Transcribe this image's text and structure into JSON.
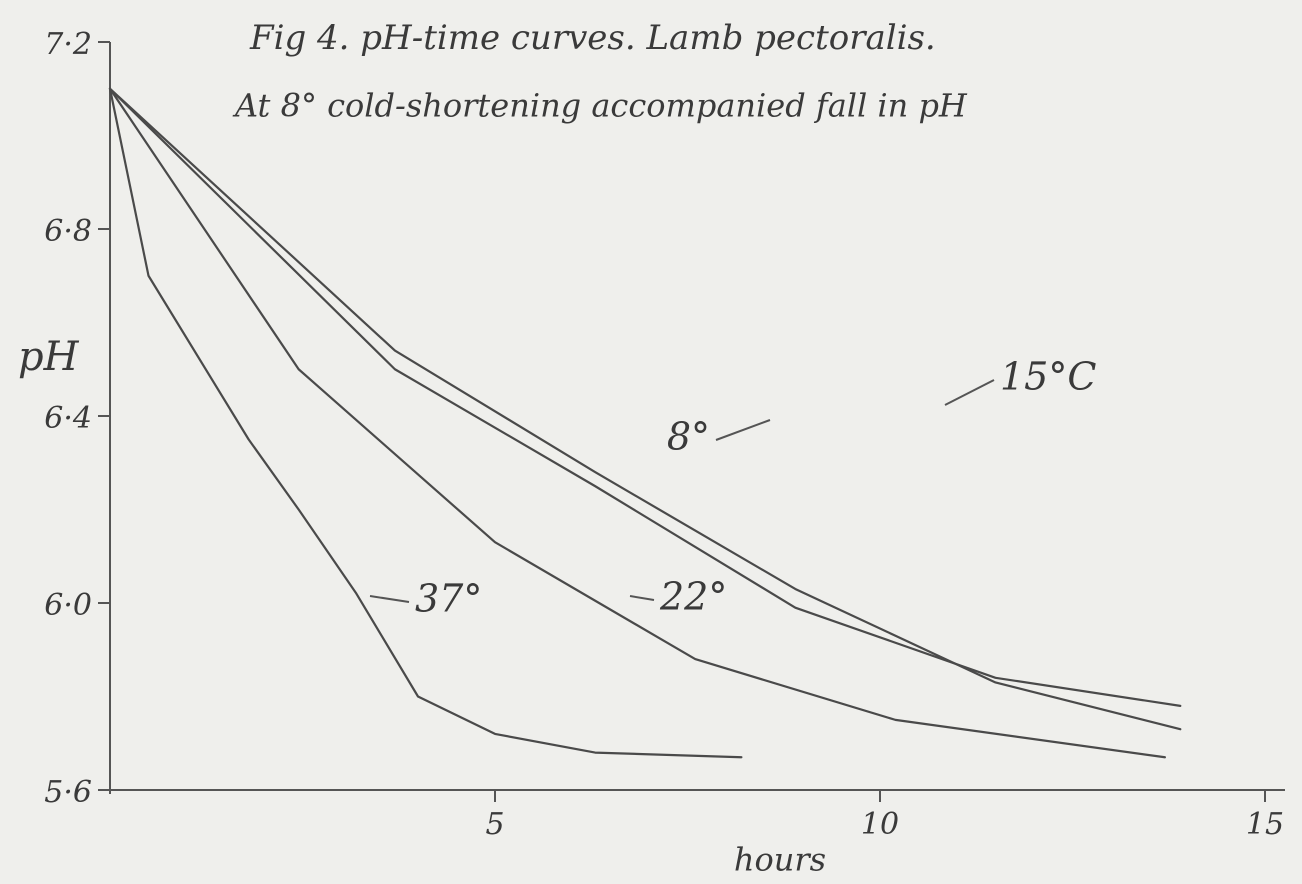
{
  "chart_data": {
    "type": "line",
    "title": "Fig 4. pH-time curves. Lamb pectoralis.",
    "subtitle": "At 8° cold-shortening accompanied fall in pH",
    "x_label": "hours",
    "y_label": "pH",
    "xlim": [
      0,
      15
    ],
    "xticks": [
      5,
      10,
      15
    ],
    "ylim": [
      5.6,
      7.2
    ],
    "yticks": [
      {
        "value": 5.6,
        "label": "5·6"
      },
      {
        "value": 6.0,
        "label": "6·0"
      },
      {
        "value": 6.4,
        "label": "6·4"
      },
      {
        "value": 6.8,
        "label": "6·8"
      },
      {
        "value": 7.2,
        "label": "7·2"
      }
    ],
    "series": [
      {
        "name": "37°",
        "color": "#4a4a4a",
        "x": [
          0,
          0.5,
          1.8,
          2.45,
          3.2,
          4,
          5,
          6.3,
          8.2
        ],
        "values": [
          7.1,
          6.7,
          6.35,
          6.2,
          6.02,
          5.8,
          5.72,
          5.68,
          5.67
        ]
      },
      {
        "name": "22°",
        "color": "#4a4a4a",
        "x": [
          0,
          2.45,
          5,
          7.6,
          10.2,
          13.7
        ],
        "values": [
          7.1,
          6.5,
          6.13,
          5.88,
          5.75,
          5.67
        ]
      },
      {
        "name": "8°",
        "color": "#4a4a4a",
        "x": [
          0,
          3.7,
          6.3,
          8.9,
          11.5,
          13.9
        ],
        "values": [
          7.1,
          6.5,
          6.25,
          5.99,
          5.84,
          5.78
        ]
      },
      {
        "name": "15°C",
        "color": "#4a4a4a",
        "x": [
          0,
          3.7,
          6.3,
          8.9,
          11.5,
          13.9
        ],
        "values": [
          7.1,
          6.54,
          6.28,
          6.03,
          5.83,
          5.73
        ]
      }
    ]
  }
}
